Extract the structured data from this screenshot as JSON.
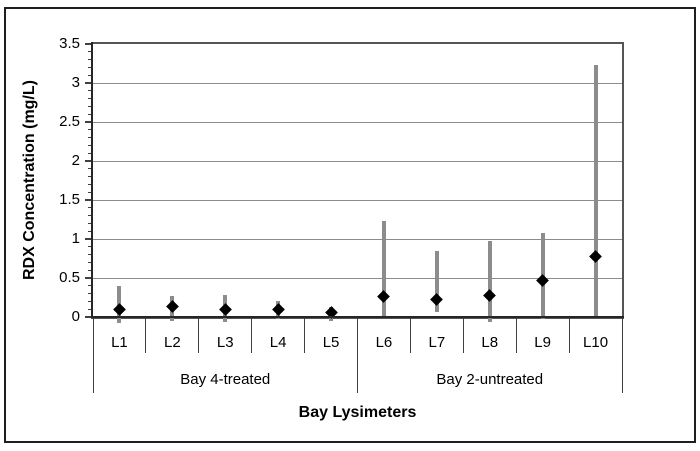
{
  "figure": {
    "y_axis_title": "RDX Concentration (mg/L)",
    "x_axis_title": "Bay Lysimeters"
  },
  "chart_data": {
    "type": "scatter",
    "title": "",
    "xlabel": "Bay Lysimeters",
    "ylabel": "RDX Concentration (mg/L)",
    "ylim": [
      0,
      3.5
    ],
    "ytick_step": 0.5,
    "ytick_labels": [
      "0",
      "0.5",
      "1",
      "1.5",
      "2",
      "2.5",
      "3",
      "3.5"
    ],
    "minor_tick_step": 0.1,
    "grid": "horizontal",
    "legend": "none",
    "categories": [
      "L1",
      "L2",
      "L3",
      "L4",
      "L5",
      "L6",
      "L7",
      "L8",
      "L9",
      "L10"
    ],
    "category_groups": [
      {
        "label": "Bay 4-treated",
        "start": 0,
        "end": 5
      },
      {
        "label": "Bay 2-untreated",
        "start": 5,
        "end": 10
      }
    ],
    "series": [
      {
        "name": "RDX concentration",
        "marker": "diamond",
        "values": [
          0.09,
          0.13,
          0.1,
          0.1,
          0.06,
          0.26,
          0.22,
          0.28,
          0.47,
          0.77
        ],
        "error_high": [
          0.4,
          0.27,
          0.28,
          0.2,
          0.13,
          1.23,
          0.84,
          0.97,
          1.08,
          3.23
        ],
        "error_low": [
          -0.08,
          -0.05,
          -0.07,
          -0.02,
          -0.05,
          0.0,
          0.06,
          -0.07,
          -0.02,
          0.0
        ]
      }
    ],
    "colors": {
      "marker": "#000000",
      "error_bar": "#8c8c8c",
      "gridline": "#8c8c8c",
      "axis": "#404040",
      "text": "#000000",
      "background": "#ffffff",
      "border": "#1f1f1f"
    }
  }
}
